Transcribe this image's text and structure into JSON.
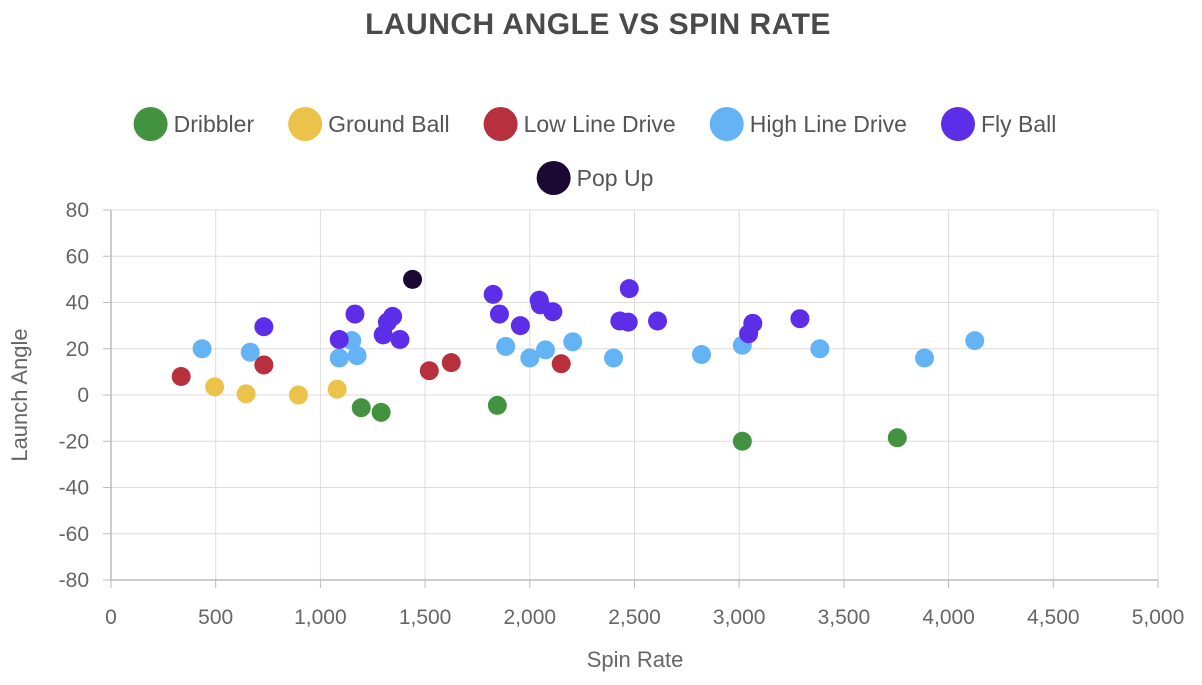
{
  "chart_data": {
    "type": "scatter",
    "title": "LAUNCH ANGLE VS SPIN RATE",
    "xlabel": "Spin Rate",
    "ylabel": "Launch Angle",
    "xlim": [
      0,
      5000
    ],
    "ylim": [
      -80,
      80
    ],
    "x_ticks": [
      0,
      500,
      1000,
      1500,
      2000,
      2500,
      3000,
      3500,
      4000,
      4500,
      5000
    ],
    "x_tick_labels": [
      "0",
      "500",
      "1,000",
      "1,500",
      "2,000",
      "2,500",
      "3,000",
      "3,500",
      "4,000",
      "4,500",
      "5,000"
    ],
    "y_ticks": [
      80,
      60,
      40,
      20,
      0,
      -20,
      -40,
      -60,
      -80
    ],
    "y_tick_labels": [
      "80",
      "60",
      "40",
      "20",
      "0",
      "-20",
      "-40",
      "-60",
      "-80"
    ],
    "grid": true,
    "legend_position": "top",
    "series": [
      {
        "name": "Dribbler",
        "color": "#43923f",
        "points": [
          [
            1195,
            -5.5
          ],
          [
            1290,
            -7.5
          ],
          [
            1845,
            -4.5
          ],
          [
            3015,
            -20
          ],
          [
            3755,
            -18.5
          ]
        ]
      },
      {
        "name": "Ground Ball",
        "color": "#ecc34a",
        "points": [
          [
            495,
            3.5
          ],
          [
            645,
            0.5
          ],
          [
            895,
            0
          ],
          [
            1080,
            2.5
          ]
        ]
      },
      {
        "name": "Low Line Drive",
        "color": "#b8303d",
        "points": [
          [
            335,
            8
          ],
          [
            730,
            13
          ],
          [
            1520,
            10.5
          ],
          [
            1625,
            14
          ],
          [
            2150,
            13.5
          ]
        ]
      },
      {
        "name": "High Line Drive",
        "color": "#63b3f5",
        "points": [
          [
            435,
            20
          ],
          [
            665,
            18.5
          ],
          [
            1090,
            16
          ],
          [
            1150,
            23.5
          ],
          [
            1175,
            17
          ],
          [
            1885,
            21
          ],
          [
            2000,
            16
          ],
          [
            2075,
            19.5
          ],
          [
            2205,
            23
          ],
          [
            2400,
            16
          ],
          [
            2820,
            17.5
          ],
          [
            3015,
            21.5
          ],
          [
            3385,
            20
          ],
          [
            3885,
            16
          ],
          [
            4125,
            23.5
          ]
        ]
      },
      {
        "name": "Fly Ball",
        "color": "#5d2ee8",
        "points": [
          [
            730,
            29.5
          ],
          [
            1090,
            24
          ],
          [
            1165,
            35
          ],
          [
            1300,
            26
          ],
          [
            1320,
            31.5
          ],
          [
            1345,
            34
          ],
          [
            1380,
            24
          ],
          [
            1825,
            43.5
          ],
          [
            1855,
            35
          ],
          [
            1955,
            30
          ],
          [
            2045,
            41
          ],
          [
            2050,
            39
          ],
          [
            2110,
            36
          ],
          [
            2430,
            32
          ],
          [
            2470,
            31.5
          ],
          [
            2475,
            46
          ],
          [
            2610,
            32
          ],
          [
            3045,
            26.5
          ],
          [
            3065,
            31
          ],
          [
            3290,
            33
          ]
        ]
      },
      {
        "name": "Pop Up",
        "color": "#1b0933",
        "points": [
          [
            1440,
            50
          ]
        ]
      }
    ]
  }
}
